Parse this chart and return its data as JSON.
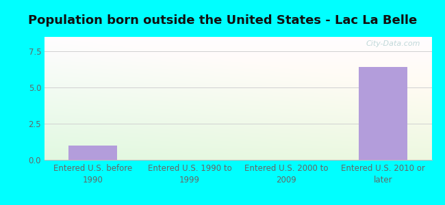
{
  "title": "Population born outside the United States - Lac La Belle",
  "categories": [
    "Entered U.S. before\n1990",
    "Entered U.S. 1990 to\n1999",
    "Entered U.S. 2000 to\n2009",
    "Entered U.S. 2010 or\nlater"
  ],
  "values": [
    1.0,
    0,
    0,
    6.4
  ],
  "bar_color": "#b39ddb",
  "ylim": [
    0,
    8.5
  ],
  "yticks": [
    0,
    2.5,
    5,
    7.5
  ],
  "background_outer": "#00FFFF",
  "grid_color": "#d0d0d0",
  "title_fontsize": 13,
  "tick_fontsize": 8.5,
  "watermark": "City-Data.com",
  "watermark_color": "#aacccc",
  "bg_colors": [
    "#e0f2e0",
    "#f8fdf8",
    "#ffffff",
    "#f5f0fa"
  ],
  "bar_width": 0.5
}
